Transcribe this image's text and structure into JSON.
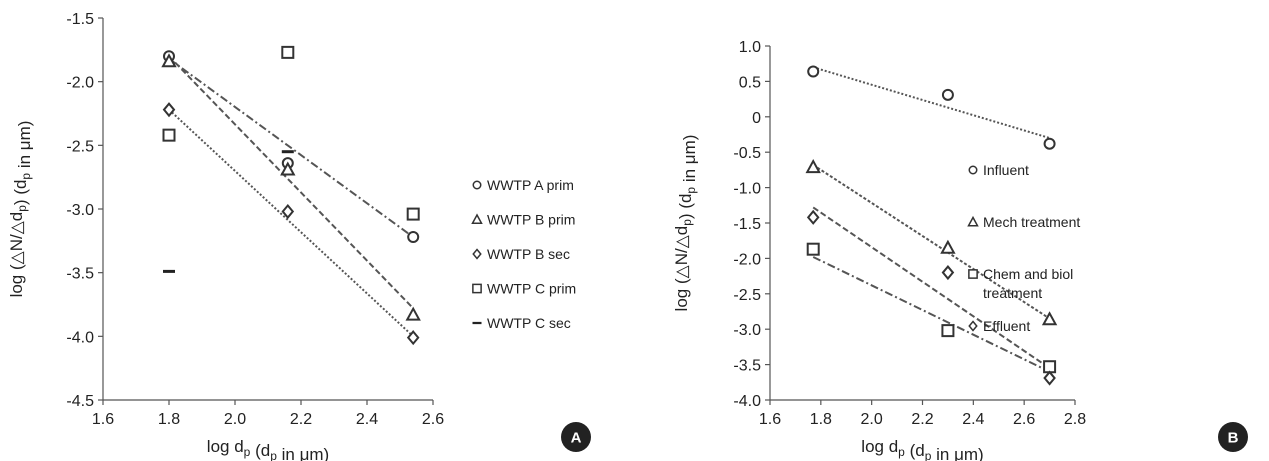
{
  "chart_data": [
    {
      "type": "scatter",
      "panel_label": "A",
      "xlabel": {
        "prefix": "log d",
        "sub1": "p",
        "mid": " (d",
        "sub2": "p",
        "suffix": " in μm)"
      },
      "ylabel": {
        "prefix": "log (△N/△d",
        "sub1": "p",
        "mid": ") (d",
        "sub2": "p",
        "suffix": " in μm)"
      },
      "xlim": [
        1.6,
        2.6
      ],
      "ylim": [
        -4.5,
        -1.5
      ],
      "xticks": [
        "1.6",
        "1.8",
        "2.0",
        "2.2",
        "2.4",
        "2.6"
      ],
      "yticks": [
        "-1.5",
        "-2.0",
        "-2.5",
        "-3.0",
        "-3.5",
        "-4.0",
        "-4.5"
      ],
      "legend_position": "right",
      "series": [
        {
          "name": "WWTP A prim",
          "marker": "circle",
          "x": [
            1.8,
            2.16,
            2.54
          ],
          "y": [
            -1.8,
            -2.64,
            -3.22
          ],
          "trend": {
            "x": [
              1.8,
              2.54
            ],
            "y": [
              -1.82,
              -3.22
            ],
            "dash": "8,3,2,3"
          }
        },
        {
          "name": "WWTP B prim",
          "marker": "triangle",
          "x": [
            1.8,
            2.16,
            2.54
          ],
          "y": [
            -1.84,
            -2.69,
            -3.83
          ],
          "trend": {
            "x": [
              1.8,
              2.54
            ],
            "y": [
              -1.8,
              -3.78
            ],
            "dash": "6,3"
          }
        },
        {
          "name": "WWTP B sec",
          "marker": "diamond",
          "x": [
            1.8,
            2.16,
            2.54
          ],
          "y": [
            -2.22,
            -3.02,
            -4.01
          ],
          "trend": {
            "x": [
              1.8,
              2.54
            ],
            "y": [
              -2.22,
              -4.0
            ],
            "dash": "2,2"
          }
        },
        {
          "name": "WWTP C prim",
          "marker": "square",
          "x": [
            1.8,
            2.16,
            2.54
          ],
          "y": [
            -2.42,
            -1.77,
            -3.04
          ]
        },
        {
          "name": "WWTP C sec",
          "marker": "dash",
          "x": [
            1.8,
            2.16
          ],
          "y": [
            -3.49,
            -2.55
          ]
        }
      ]
    },
    {
      "type": "scatter",
      "panel_label": "B",
      "xlabel": {
        "prefix": "log d",
        "sub1": "p",
        "mid": " (d",
        "sub2": "p",
        "suffix": " in μm)"
      },
      "ylabel": {
        "prefix": "log (△N/△d",
        "sub1": "p",
        "mid": ") (d",
        "sub2": "p",
        "suffix": " in μm)"
      },
      "xlim": [
        1.6,
        2.8
      ],
      "ylim": [
        -4.0,
        1.0
      ],
      "xticks": [
        "1.6",
        "1.8",
        "2.0",
        "2.2",
        "2.4",
        "2.6",
        "2.8"
      ],
      "yticks": [
        "1.0",
        "0.5",
        "0",
        "-0.5",
        "-1.0",
        "-1.5",
        "-2.0",
        "-2.5",
        "-3.0",
        "-3.5",
        "-4.0"
      ],
      "legend_position": "right",
      "series": [
        {
          "name": "Influent",
          "marker": "circle",
          "x": [
            1.77,
            2.3,
            2.7
          ],
          "y": [
            0.64,
            0.31,
            -0.38
          ],
          "trend": {
            "x": [
              1.77,
              2.7
            ],
            "y": [
              0.7,
              -0.3
            ],
            "dash": "2,2"
          }
        },
        {
          "name": "Mech treatment",
          "marker": "triangle",
          "x": [
            1.77,
            2.3,
            2.7
          ],
          "y": [
            -0.71,
            -1.85,
            -2.86
          ],
          "trend": {
            "x": [
              1.77,
              2.7
            ],
            "y": [
              -0.68,
              -2.85
            ],
            "dash": "3,2"
          }
        },
        {
          "name": [
            "Chem and biol",
            "treatment"
          ],
          "marker": "square",
          "x": [
            1.77,
            2.3,
            2.7
          ],
          "y": [
            -1.87,
            -3.02,
            -3.53
          ],
          "trend": {
            "x": [
              1.77,
              2.7
            ],
            "y": [
              -1.98,
              -3.6
            ],
            "dash": "8,3,2,3"
          }
        },
        {
          "name": "Effluent",
          "marker": "diamond",
          "x": [
            1.77,
            2.3,
            2.7
          ],
          "y": [
            -1.42,
            -2.2,
            -3.69
          ],
          "trend": {
            "x": [
              1.77,
              2.7
            ],
            "y": [
              -1.28,
              -3.55
            ],
            "dash": "6,3"
          }
        }
      ]
    }
  ]
}
